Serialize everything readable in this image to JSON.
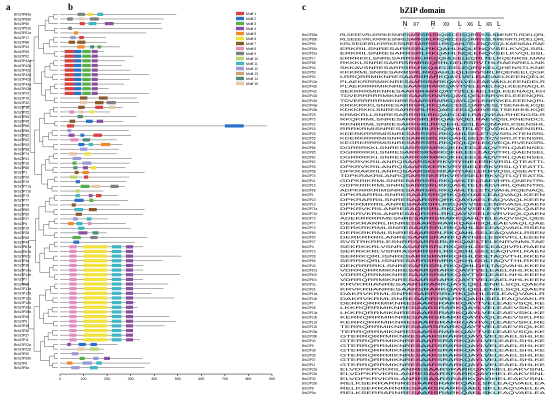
{
  "panels": {
    "a": "a",
    "b": "b",
    "c": "c"
  },
  "bzip_domain_title": "bZIP domain",
  "motif_header": [
    "N",
    "X7",
    "R",
    "X9",
    "L",
    "X6",
    "L",
    "X6",
    "L"
  ],
  "motif_legend": [
    "Motif 1",
    "Motif 2",
    "Motif 3",
    "Motif 4",
    "Motif 5",
    "Motif 6",
    "Motif 7",
    "Motif 8",
    "Motif 9",
    "Motif 10",
    "Motif 11",
    "Motif 12",
    "Motif 13",
    "Motif 14",
    "Motif 15"
  ],
  "motif_colors": [
    "#d6403d",
    "#2a6fc9",
    "#55b04a",
    "#8c4ea0",
    "#f08a24",
    "#f2e23b",
    "#8a5a2b",
    "#e68bbf",
    "#7f7f7f",
    "#b7d96a",
    "#3fb6c6",
    "#9a9ad8",
    "#c9a06a",
    "#4e8c7a",
    "#e6c9a8"
  ],
  "axis_ticks": [
    "0",
    "100",
    "200",
    "300",
    "400",
    "500",
    "600",
    "700",
    "800",
    "900"
  ],
  "genes": [
    "BrbZIP89a",
    "BrbZIP89b",
    "BrbZIP90",
    "BrbZIP51b",
    "BrbZIP51a",
    "BrbZIP17",
    "BrbZIP88",
    "BrbZIP34",
    "BrbZIP59",
    "BrbZIP52",
    "BrbZIP42a",
    "BrbZIP42b",
    "BrbZIP42c",
    "BrbZIP42d",
    "BrbZIP42e",
    "BrbZIP43a",
    "BrbZIP43b",
    "BrbZIP29",
    "BrbZIP76",
    "BrbZIP32",
    "BrbZIP18",
    "BrbZIP25",
    "BrbZIP55",
    "BrbZIP45",
    "BrbZIP86",
    "BrbZIP85",
    "BrbZIP82",
    "BrbZIP62",
    "BrbZIP93",
    "BrbZIP58",
    "BrbZIP74",
    "BrbZIP41",
    "BrbZIP16",
    "BrbZIP68",
    "BrbZIP1",
    "BrbZIP20",
    "BrbZIP19",
    "BrbZIP71a",
    "BrbZIP71b",
    "BrbZIP73",
    "BrbZIP77",
    "BrbZIP70",
    "BrbZIP69",
    "BrbZIP50",
    "BrbZIP27",
    "BrbZIP4",
    "BrbZIP15",
    "BrbZIP28",
    "BrbZIP65",
    "BrbZIP44",
    "BrbZIP67a",
    "BrbZIP67b",
    "BrbZIP67c",
    "BrbZIP3a",
    "BrbZIP3b",
    "BrbZIP14a",
    "BrbZIP14b",
    "BrbZIP7",
    "BrbZIP35",
    "BrbZIP13a",
    "BrbZIP13b",
    "BrbZIP12a",
    "BrbZIP12b",
    "BrbZIP39a",
    "BrbZIP39b",
    "BrbZIP40",
    "BrbZIP9",
    "BrbZIP38",
    "BrbZIP36",
    "BrbZIP37",
    "BrbZIP11",
    "BrbZIP22a",
    "BrbZIP22b",
    "BrbZIP30",
    "BrbZIP30b",
    "BrbZIP8",
    "BrbZIP5a"
  ],
  "seq_rows": [
    "RLSEEEVRLKRRKESNRESARRSRLRKQAECEELQRRVESLNMENRTLRDELQRL",
    "RLSEEEVRLKRRKESNRESARRSRLRKQAECEELQRRVESLNMENRTLRDELQRL",
    "KRLSEDEIRLKRRKESNRESARRSRLRKQAHLTELENQVDQLKAENSALRAE",
    "ERKRILSNRESARRSRLRKQAHLNQLENQVSELKVQLSSL",
    "ERKRILSNRESARRSRLRKQAHLNQLENQVSELKVQLSSL",
    "ERRRKKLSNRESARRSRLRKQQHLEELEQRLTELRQENRSLMAN",
    "RKKKLSNRESARRSRMRKQRHLDELRSRVTHLRAENRELLNK",
    "SKKAVSNRESARRSRLRKQAECEELEQRVKELQHENSTLKNE",
    "KKKRMLSNRESARRSRLRKQAHLEQLEIRVSRLRQENEELQGK",
    "LRRQRRMIKNRESAARSRARKQAYLVELEAEIAKLKEENQELK",
    "PLAEKRRRMIKNRESAARSRARKQAYLVELEAEVAKLKEENDELR",
    "PLAEKRRRMIKNRESAARSRARKQAYTVELEAELNQLKEENAQLK",
    "SEKRRRMIKNRESAARSRARKQAYTVELEAELNQLKEENAQLKH",
    "TDVERRRRRMIKNRESAARSRARKQAYLQELENRVKELEEENQRL",
    "TDVERRRRRMIKNRESAARSRARKQAYLQELENRVKELEEENQRL",
    "KRKKRKKLSNRESARRSRLRKQAECEELQARVESLTSENHHLKQE",
    "KDKKRKKLSNRESARRSRLRKQAECEELQARVESLTSENHHLKQE",
    "KRMKRLLSNRESARRSRLRKQAECDELRAQVEALRHENGSLR",
    "RKQKRMLSNRESARRSRLRKQAEVQELRAEVQSLRNENDCL",
    "RKNRRMLSNRESARRSRLRKQEHLGDLEAQMARLKSENSHL",
    "RRRKRMISNRESARRSRLRKQAHLTELETQVDKLRAENSRL",
    "KDERKRRRMISNRESARRSRLRKQAHLSELETQVSRLKTENSRL",
    "KDERKRRRMISNRESARRSRLRKQAHLSELETQVSRLKTENSRL",
    "KEGRKRRRMISNRESARRSRLRKQEQLQELEIQVEQLRVENGRL",
    "DGRRRKKLSNRESARRSRMRKQKHLEELEAQVTRLQAENSEL",
    "DGRRRKKLSNRESARRSRMRKQKHLEELEAQVTRLQAENSEL",
    "DGRRRKKLSNRESARRSRMRKQKHLEELEAQVTRLQAENSEL",
    "DPKRVKRILANRQSAARSKERKVRYINELERKVRSLQTEATTL",
    "DPKRVKRILANRQSAARSKERKVRYINELERKVRSLQTEATTL",
    "DPKRAKRILANRQSAARSKERKARYIAELEKRVQSLQSEATTL",
    "TDPKRAKRILANRQSARRSKERKVRYISELERKVQTLQTEATSL",
    "GDPKRIKRMLSNRESARRSRLRKQAHLTELEAEVHRLQNENTRL",
    "GDPKRIKRMLSNRESARRSRLRKQAHLTELEAEVHRLQNENTRL",
    "ADPKRRKRIMSNRESAARSRLRKQAHLTELETQVAHLRQENAQL",
    "DPKRARRILSNRESAARSRQRKQAYIAELEAQVAQLKEEN",
    "DPKRARRILSNRESAARSRQRKQAYIAELEAQVAQLKEEN",
    "DPKRMRRILANRESAARSRLRKQAYVSELENRVASLQAEN",
    "DPKRVKRILANRESAQRSRLRKQAYVSELEVRVNQLQAEN",
    "DPKRVKRILANRESAQRSRLRKQAYVSELEVRVNQLQAEN",
    "ADEKRRRRMESNRESARRSRARKQAHLTELEAQVSQLQEE",
    "DEKKRARRLIKNRESAARSRARKQAHISQLEAEVAQLQAE",
    "DERKRKRMLSNRESAARSRLRKQAHLSELEAQVAKLRSEN",
    "DERKRKRMLSNRESAARSRLRKQAHLSELEAQVAKLRSEN",
    "DERKRRRILANRESAARSRARKQAYISELESRVKLLEEEN",
    "SVSTRKRRLESNRRSARRSRLRKQAELTELENRVNMLTAE",
    "SEKRKKRLVSNRASARRSRLRKQEHLGELEAQIVRLRAEN",
    "SEKRKKRLVSNRASARRSRLRKQEHLGELEAQIVRLRAEN",
    "SERRKQRLISNRESARRSRMRKQKHLDDLTAQVTHLRKEN",
    "SERRKQRLISNRESARRSRMRKQKHLDDLTAQVTHLRKEN",
    "DEKRRRRKLSNRESARRSRLRKQQHLDELTAQVAHLKKEN",
    "VDRRQRRMIKNRESAARSRARKQAYTVELEAELNHLKEEN",
    "VDRRQRRMIKNRESAARSRARKQAYTVELEAELNHLKEEN",
    "VDRRQRRMIKNRESAARSRARKQAYTVELEAELNHLKEEN",
    "KRVKRIIANRESAARSRARKQAYLQELENKLSQLQAEN",
    "KRVKRIIANRESAARSRARKQAYLQELENKLSQLQAEN",
    "DAKRVKRMLSNRESARRSRLRKQAHLSELEAQVAKLR",
    "DAKRVKRMLSNRESARRSRLRKQAHLSELEAQVAKLR",
    "DERRQRRMIKNRESAARSRARKQAYTVELEAEVSQLKE",
    "LKKRQRRMIKNRESAARSRARKQAYLVELEAEVSKLKE",
    "LKKRQRRMIKNRESAARSRARKQAYLVELEAEVSKLKE",
    "KERRQRRMIKNRESAARSRARKQAYIVQLEAEVSKLRE",
    "KERRQRRMIKNRESAARSRARKQAYIVQLEAEVSKLRE",
    "TERRQRRMIKNRESAARSRARKQAYTVELEAEVSQLKE",
    "TERRQRRMIKNRESAARSRARKQAYTVELEAEVSQLKE",
    "GTERRQRRMIKNRESAARSRARKQAYLVELEAELSHLKE",
    "GTERRQRRMIKNRESAARSRARKQAYLVELEAELSHLKE",
    "GTERRQRRMIKNRESAARSRARKQAYLVELEAELSHLKE",
    "GTERRQRRMIKNRESAARSRARKQAYLVELEAELSHLKE",
    "GTERRQRRMIKNRESAARSRARKQAYLVELEAELSHLKE",
    "GTERRQRRMIKNRESAARSRARKQAYLVELEAELSHLKE",
    "GTERRQRRMIKNRESAARSRARKQAYLVELEAELSHLKE",
    "ELVDPKRVKRILANRESAARSRARKQAYIHELEAKVSNL",
    "ELVDPKRVKRILANRESAARSRARKQAYIHELEAKVSNL",
    "ELVDPKRVKRILANRESAARSRARKQAYIHELEAKVSNL",
    "RELKSERRARNRESAARSRARKQAELSKLEAQVAELEA",
    "RELKSERRARNRESAARSRARKQAELSKLEAQVAELEA",
    "RELKSERRARNRESAARSRARKQAELSKLEAQVAELEA"
  ]
}
